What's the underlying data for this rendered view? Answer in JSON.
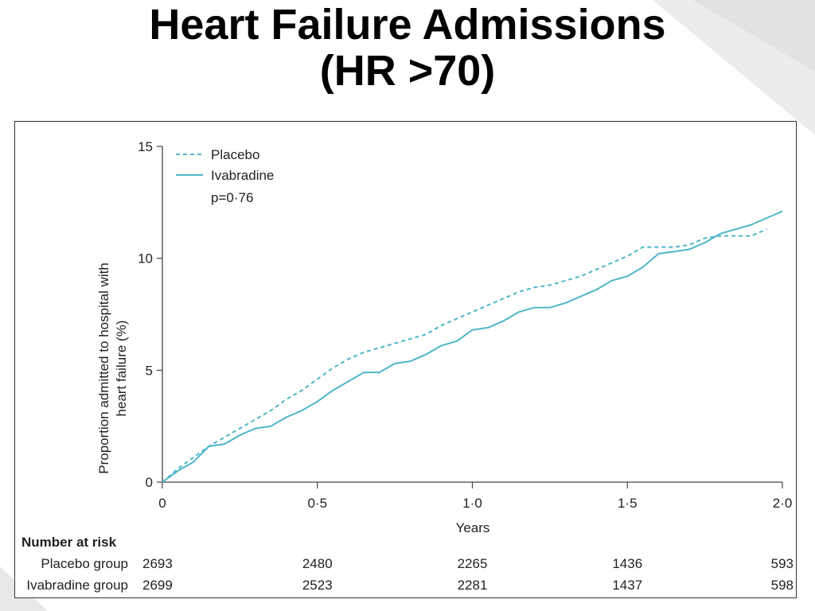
{
  "slide": {
    "title_line1": "Heart Failure Admissions",
    "title_line2": "(HR >70)"
  },
  "chart_data": {
    "type": "line",
    "ylabel_line1": "Proportion admitted to hospital with",
    "ylabel_line2": "heart failure (%)",
    "xlabel": "Years",
    "xlim": [
      0,
      2.0
    ],
    "ylim": [
      0,
      15
    ],
    "x_ticks": [
      "0",
      "0·5",
      "1·0",
      "1·5",
      "2·0"
    ],
    "x_tick_values": [
      0,
      0.5,
      1.0,
      1.5,
      2.0
    ],
    "y_ticks": [
      "0",
      "5",
      "10",
      "15"
    ],
    "y_tick_values": [
      0,
      5,
      10,
      15
    ],
    "grid": false,
    "legend_position": "top-left",
    "annotation": "p=0·76",
    "colors": {
      "series": "#4fb6c8",
      "axis": "#444444"
    },
    "series": [
      {
        "name": "Placebo",
        "style": "dashed",
        "x": [
          0,
          0.05,
          0.1,
          0.15,
          0.2,
          0.25,
          0.3,
          0.35,
          0.4,
          0.45,
          0.5,
          0.55,
          0.6,
          0.65,
          0.7,
          0.75,
          0.8,
          0.85,
          0.9,
          0.95,
          1.0,
          1.05,
          1.1,
          1.15,
          1.2,
          1.25,
          1.3,
          1.35,
          1.4,
          1.45,
          1.5,
          1.55,
          1.6,
          1.65,
          1.7,
          1.75,
          1.8,
          1.85,
          1.9,
          1.95
        ],
        "y": [
          0,
          0.6,
          1.1,
          1.6,
          2.0,
          2.4,
          2.8,
          3.2,
          3.7,
          4.1,
          4.6,
          5.1,
          5.5,
          5.8,
          6.0,
          6.2,
          6.4,
          6.6,
          7.0,
          7.3,
          7.6,
          7.9,
          8.2,
          8.5,
          8.7,
          8.8,
          9.0,
          9.2,
          9.5,
          9.8,
          10.1,
          10.5,
          10.5,
          10.5,
          10.6,
          10.9,
          11.0,
          11.0,
          11.0,
          11.3
        ]
      },
      {
        "name": "Ivabradine",
        "style": "solid",
        "x": [
          0,
          0.05,
          0.1,
          0.15,
          0.2,
          0.25,
          0.3,
          0.35,
          0.4,
          0.45,
          0.5,
          0.55,
          0.6,
          0.65,
          0.7,
          0.75,
          0.8,
          0.85,
          0.9,
          0.95,
          1.0,
          1.05,
          1.1,
          1.15,
          1.2,
          1.25,
          1.3,
          1.35,
          1.4,
          1.45,
          1.5,
          1.55,
          1.6,
          1.65,
          1.7,
          1.75,
          1.8,
          1.85,
          1.9,
          1.95,
          2.0
        ],
        "y": [
          0,
          0.5,
          0.9,
          1.6,
          1.7,
          2.1,
          2.4,
          2.5,
          2.9,
          3.2,
          3.6,
          4.1,
          4.5,
          4.9,
          4.9,
          5.3,
          5.4,
          5.7,
          6.1,
          6.3,
          6.8,
          6.9,
          7.2,
          7.6,
          7.8,
          7.8,
          8.0,
          8.3,
          8.6,
          9.0,
          9.2,
          9.6,
          10.2,
          10.3,
          10.4,
          10.7,
          11.1,
          11.3,
          11.5,
          11.8,
          12.1
        ]
      }
    ],
    "risk_table": {
      "header": "Number at risk",
      "rows": [
        {
          "label": "Placebo group",
          "values": [
            "2693",
            "2480",
            "2265",
            "1436",
            "593"
          ]
        },
        {
          "label": "Ivabradine group",
          "values": [
            "2699",
            "2523",
            "2281",
            "1437",
            "598"
          ]
        }
      ]
    }
  }
}
